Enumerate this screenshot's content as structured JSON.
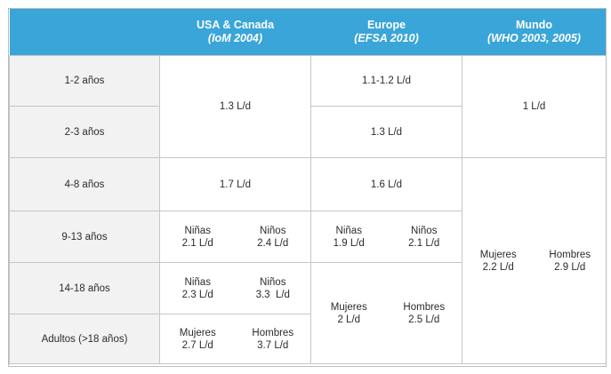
{
  "header": {
    "col0": "",
    "usa": {
      "title": "USA & Canada",
      "sub": "(IoM 2004)"
    },
    "europe": {
      "title": "Europe",
      "sub": "(EFSA 2010)"
    },
    "mundo": {
      "title": "Mundo",
      "sub": "(WHO 2003, 2005)"
    }
  },
  "rows": {
    "r1": "1-2 años",
    "r2": "2-3 años",
    "r3": "4-8 años",
    "r4": "9-13 años",
    "r5": "14-18 años",
    "r6": "Adultos (>18 años)"
  },
  "usa": {
    "r12": "1.3 L/d",
    "r3": "1.7 L/d",
    "r4": {
      "left_label": "Niñas",
      "left_value": "2.1 L/d",
      "right_label": "Niños",
      "right_value": "2.4 L/d"
    },
    "r5": {
      "left_label": "Niñas",
      "left_value": "2.3 L/d",
      "right_label": "Niños",
      "right_value": "3.3  L/d"
    },
    "r6": {
      "left_label": "Mujeres",
      "left_value": "2.7 L/d",
      "right_label": "Hombres",
      "right_value": "3.7 L/d"
    }
  },
  "europe": {
    "r1": "1.1-1.2 L/d",
    "r2": "1.3 L/d",
    "r3": "1.6 L/d",
    "r4": {
      "left_label": "Niñas",
      "left_value": "1.9 L/d",
      "right_label": "Niños",
      "right_value": "2.1 L/d"
    },
    "r56": {
      "left_label": "Mujeres",
      "left_value": "2 L/d",
      "right_label": "Hombres",
      "right_value": "2.5 L/d"
    }
  },
  "mundo": {
    "r12": "1 L/d",
    "r36": {
      "left_label": "Mujeres",
      "left_value": "2.2 L/d",
      "right_label": "Hombres",
      "right_value": "2.9 L/d"
    }
  }
}
